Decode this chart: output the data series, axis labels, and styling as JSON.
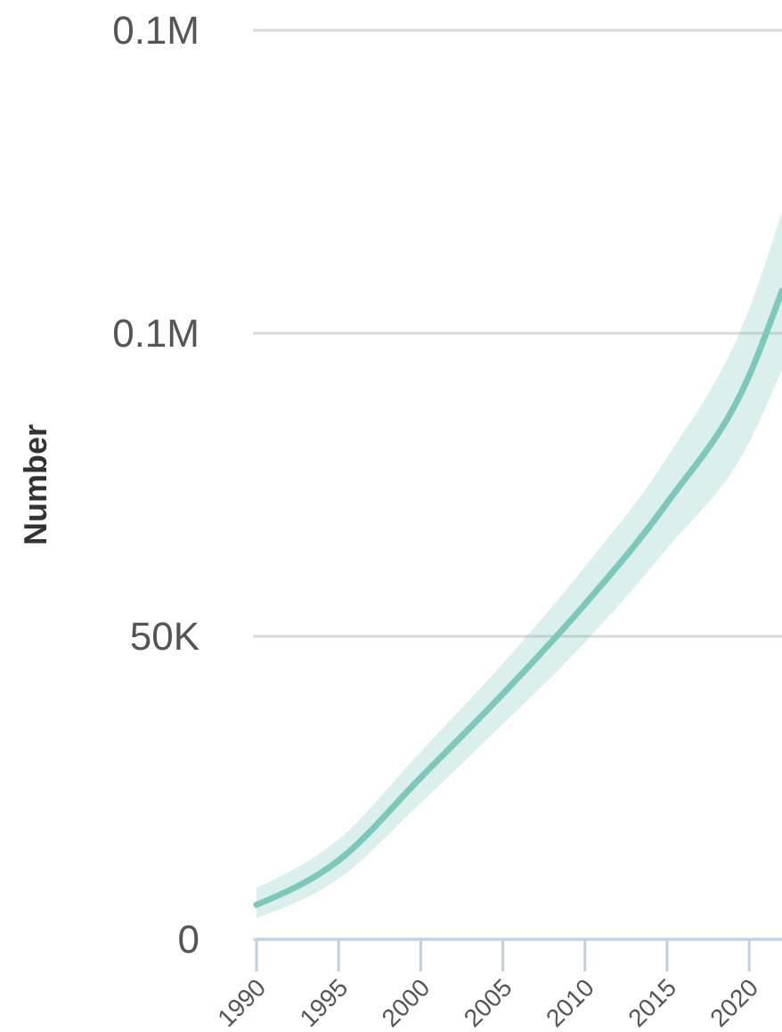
{
  "chart_data": {
    "type": "line",
    "ylabel": "Number",
    "x": [
      1990,
      1995,
      2000,
      2005,
      2010,
      2015,
      2020,
      2022
    ],
    "series": [
      {
        "color": "#7ec8bb",
        "values": [
          5700,
          13000,
          26700,
          40500,
          55300,
          72000,
          93000,
          107000
        ],
        "lower": [
          3500,
          10000,
          22500,
          35500,
          49000,
          64500,
          82000,
          94000
        ],
        "upper": [
          8500,
          16500,
          31000,
          45500,
          61500,
          79500,
          104000,
          120000
        ]
      }
    ],
    "xlim": [
      1990,
      2022
    ],
    "xticks": [
      1990,
      1995,
      2000,
      2005,
      2010,
      2015,
      2020
    ],
    "ylim": [
      0,
      150000
    ],
    "yticks": [
      {
        "value": 0,
        "label": "0"
      },
      {
        "value": 50000,
        "label": "50K"
      },
      {
        "value": 100000,
        "label": "0.1M"
      },
      {
        "value": 150000,
        "label": "0.1M"
      }
    ],
    "grid": "y",
    "marker": "none",
    "line_style": "solid"
  }
}
